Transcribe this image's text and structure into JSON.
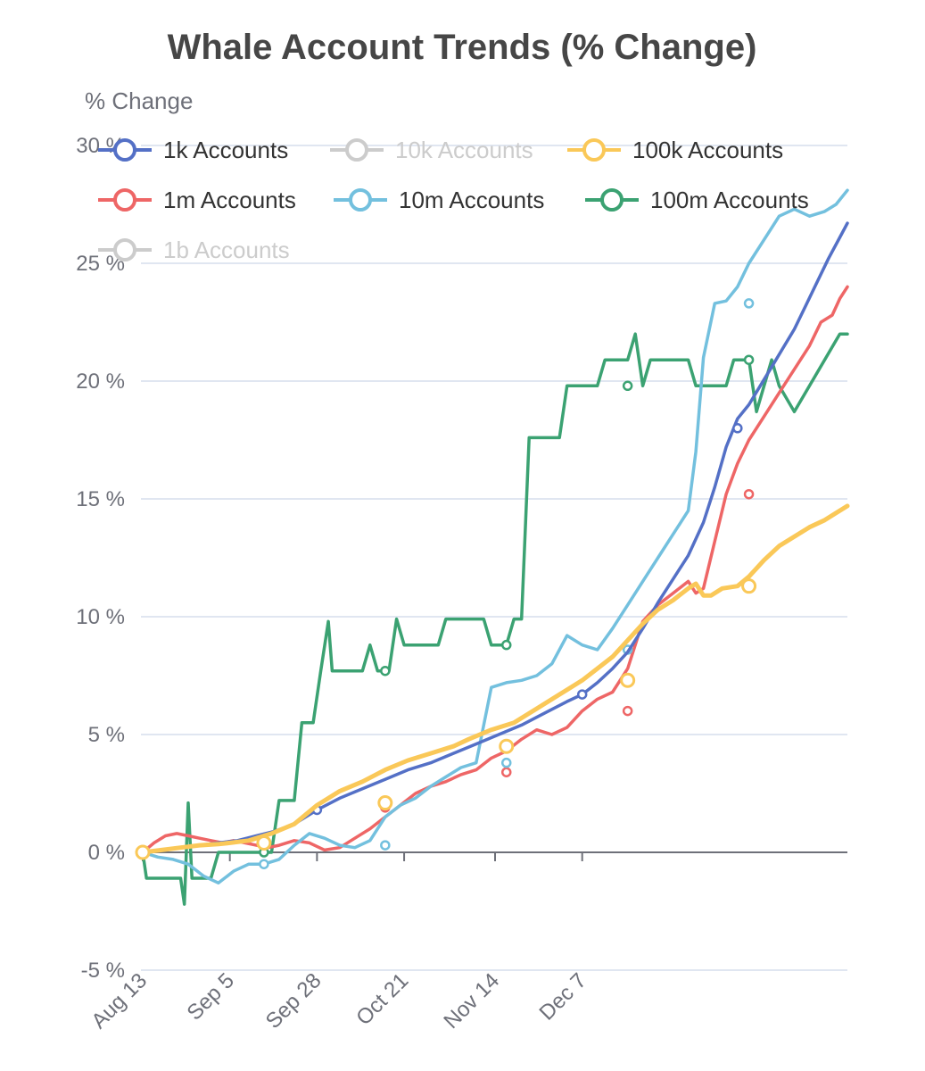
{
  "chart_data": {
    "type": "line",
    "title": "Whale Account Trends (% Change)",
    "ylabel": "% Change",
    "xlabel": "",
    "ylim": [
      -5,
      30
    ],
    "yticks": [
      -5,
      0,
      5,
      10,
      15,
      20,
      25,
      30
    ],
    "ytick_labels": [
      "-5 %",
      "0 %",
      "5 %",
      "10 %",
      "15 %",
      "20 %",
      "25 %",
      "30 %"
    ],
    "x_start": "Aug 13",
    "x_end": "Dec 30",
    "xticks": [
      "Aug 13",
      "Sep 5",
      "Sep 28",
      "Oct 21",
      "Nov 14",
      "Dec 7"
    ],
    "grid": true,
    "legend_position": "top",
    "series": [
      {
        "name": "1k Accounts",
        "color": "#5470c6",
        "visible": true,
        "points": [
          [
            0,
            0
          ],
          [
            5,
            0.1
          ],
          [
            10,
            0.2
          ],
          [
            15,
            0.3
          ],
          [
            20,
            0.4
          ],
          [
            25,
            0.5
          ],
          [
            30,
            0.7
          ],
          [
            35,
            0.9
          ],
          [
            40,
            1.2
          ],
          [
            46,
            1.8
          ],
          [
            52,
            2.3
          ],
          [
            58,
            2.7
          ],
          [
            64,
            3.1
          ],
          [
            70,
            3.5
          ],
          [
            76,
            3.8
          ],
          [
            82,
            4.2
          ],
          [
            88,
            4.6
          ],
          [
            94,
            5.0
          ],
          [
            100,
            5.4
          ],
          [
            106,
            5.9
          ],
          [
            112,
            6.4
          ],
          [
            116,
            6.7
          ],
          [
            120,
            7.2
          ],
          [
            124,
            7.8
          ],
          [
            128,
            8.5
          ],
          [
            132,
            9.5
          ],
          [
            136,
            10.6
          ],
          [
            140,
            11.6
          ],
          [
            144,
            12.6
          ],
          [
            148,
            14.0
          ],
          [
            151,
            15.5
          ],
          [
            154,
            17.2
          ],
          [
            157,
            18.4
          ],
          [
            160,
            19.0
          ],
          [
            163,
            19.8
          ],
          [
            166,
            20.6
          ],
          [
            169,
            21.4
          ],
          [
            172,
            22.2
          ],
          [
            175,
            23.2
          ],
          [
            178,
            24.2
          ],
          [
            181,
            25.2
          ],
          [
            184,
            26.1
          ],
          [
            186,
            26.7
          ]
        ],
        "markers": [
          [
            46,
            1.8
          ],
          [
            116,
            6.7
          ],
          [
            157,
            18.0
          ]
        ]
      },
      {
        "name": "10k Accounts",
        "color": "#91cc75",
        "visible": false,
        "points": [],
        "markers": []
      },
      {
        "name": "100k Accounts",
        "color": "#fac858",
        "visible": true,
        "points": [
          [
            0,
            0
          ],
          [
            5,
            0.1
          ],
          [
            10,
            0.2
          ],
          [
            15,
            0.3
          ],
          [
            20,
            0.35
          ],
          [
            23,
            0.4
          ],
          [
            28,
            0.5
          ],
          [
            34,
            0.8
          ],
          [
            40,
            1.2
          ],
          [
            46,
            2.0
          ],
          [
            52,
            2.6
          ],
          [
            58,
            3.0
          ],
          [
            64,
            3.5
          ],
          [
            70,
            3.9
          ],
          [
            76,
            4.2
          ],
          [
            82,
            4.5
          ],
          [
            86,
            4.8
          ],
          [
            92,
            5.2
          ],
          [
            98,
            5.5
          ],
          [
            104,
            6.1
          ],
          [
            110,
            6.7
          ],
          [
            116,
            7.3
          ],
          [
            120,
            7.8
          ],
          [
            124,
            8.3
          ],
          [
            128,
            9.0
          ],
          [
            132,
            9.7
          ],
          [
            136,
            10.3
          ],
          [
            140,
            10.7
          ],
          [
            144,
            11.2
          ],
          [
            146,
            11.4
          ],
          [
            148,
            10.9
          ],
          [
            150,
            10.9
          ],
          [
            153,
            11.2
          ],
          [
            157,
            11.3
          ],
          [
            160,
            11.7
          ],
          [
            164,
            12.4
          ],
          [
            168,
            13.0
          ],
          [
            172,
            13.4
          ],
          [
            176,
            13.8
          ],
          [
            180,
            14.1
          ],
          [
            183,
            14.4
          ],
          [
            186,
            14.7
          ]
        ],
        "markers": [
          [
            0,
            0
          ],
          [
            32,
            0.4
          ],
          [
            64,
            2.1
          ],
          [
            96,
            4.5
          ],
          [
            128,
            7.3
          ],
          [
            160,
            11.3
          ]
        ]
      },
      {
        "name": "1m Accounts",
        "color": "#ee6666",
        "visible": true,
        "points": [
          [
            0,
            0
          ],
          [
            3,
            0.4
          ],
          [
            6,
            0.7
          ],
          [
            9,
            0.8
          ],
          [
            12,
            0.7
          ],
          [
            15,
            0.6
          ],
          [
            18,
            0.5
          ],
          [
            21,
            0.4
          ],
          [
            24,
            0.5
          ],
          [
            27,
            0.4
          ],
          [
            30,
            0.3
          ],
          [
            33,
            0.2
          ],
          [
            36,
            0.3
          ],
          [
            40,
            0.5
          ],
          [
            44,
            0.4
          ],
          [
            48,
            0.1
          ],
          [
            52,
            0.2
          ],
          [
            56,
            0.6
          ],
          [
            60,
            1.0
          ],
          [
            64,
            1.5
          ],
          [
            68,
            2.0
          ],
          [
            72,
            2.5
          ],
          [
            76,
            2.8
          ],
          [
            80,
            3.0
          ],
          [
            84,
            3.3
          ],
          [
            88,
            3.5
          ],
          [
            92,
            4.0
          ],
          [
            96,
            4.3
          ],
          [
            100,
            4.8
          ],
          [
            104,
            5.2
          ],
          [
            108,
            5.0
          ],
          [
            112,
            5.3
          ],
          [
            116,
            6.0
          ],
          [
            120,
            6.5
          ],
          [
            124,
            6.8
          ],
          [
            128,
            7.8
          ],
          [
            132,
            9.8
          ],
          [
            136,
            10.5
          ],
          [
            140,
            11.0
          ],
          [
            144,
            11.5
          ],
          [
            146,
            11.0
          ],
          [
            148,
            11.2
          ],
          [
            151,
            13.2
          ],
          [
            154,
            15.2
          ],
          [
            157,
            16.5
          ],
          [
            160,
            17.5
          ],
          [
            164,
            18.5
          ],
          [
            168,
            19.5
          ],
          [
            172,
            20.5
          ],
          [
            176,
            21.5
          ],
          [
            179,
            22.5
          ],
          [
            182,
            22.8
          ],
          [
            184,
            23.5
          ],
          [
            186,
            24.0
          ]
        ],
        "markers": [
          [
            32,
            0.4
          ],
          [
            64,
            1.9
          ],
          [
            96,
            3.4
          ],
          [
            128,
            6.0
          ],
          [
            160,
            15.2
          ]
        ]
      },
      {
        "name": "10m Accounts",
        "color": "#73c0de",
        "visible": true,
        "points": [
          [
            0,
            0
          ],
          [
            4,
            -0.2
          ],
          [
            8,
            -0.3
          ],
          [
            12,
            -0.5
          ],
          [
            16,
            -1.0
          ],
          [
            20,
            -1.3
          ],
          [
            24,
            -0.8
          ],
          [
            28,
            -0.5
          ],
          [
            32,
            -0.5
          ],
          [
            36,
            -0.3
          ],
          [
            40,
            0.3
          ],
          [
            44,
            0.8
          ],
          [
            48,
            0.6
          ],
          [
            52,
            0.3
          ],
          [
            56,
            0.2
          ],
          [
            60,
            0.5
          ],
          [
            64,
            1.5
          ],
          [
            68,
            2.0
          ],
          [
            72,
            2.3
          ],
          [
            76,
            2.8
          ],
          [
            80,
            3.2
          ],
          [
            84,
            3.6
          ],
          [
            88,
            3.8
          ],
          [
            92,
            7.0
          ],
          [
            96,
            7.2
          ],
          [
            100,
            7.3
          ],
          [
            104,
            7.5
          ],
          [
            108,
            8.0
          ],
          [
            112,
            9.2
          ],
          [
            116,
            8.8
          ],
          [
            120,
            8.6
          ],
          [
            124,
            9.5
          ],
          [
            128,
            10.5
          ],
          [
            132,
            11.5
          ],
          [
            136,
            12.5
          ],
          [
            140,
            13.5
          ],
          [
            144,
            14.5
          ],
          [
            146,
            17.0
          ],
          [
            148,
            21.0
          ],
          [
            151,
            23.3
          ],
          [
            154,
            23.4
          ],
          [
            157,
            24.0
          ],
          [
            160,
            25.0
          ],
          [
            164,
            26.0
          ],
          [
            168,
            27.0
          ],
          [
            172,
            27.3
          ],
          [
            176,
            27.0
          ],
          [
            180,
            27.2
          ],
          [
            183,
            27.5
          ],
          [
            186,
            28.1
          ]
        ],
        "markers": [
          [
            32,
            -0.5
          ],
          [
            64,
            0.3
          ],
          [
            96,
            3.8
          ],
          [
            128,
            8.6
          ],
          [
            160,
            23.3
          ]
        ]
      },
      {
        "name": "100m Accounts",
        "color": "#3ba272",
        "visible": true,
        "points": [
          [
            0,
            0
          ],
          [
            1,
            -1.1
          ],
          [
            5,
            -1.1
          ],
          [
            10,
            -1.1
          ],
          [
            11,
            -2.2
          ],
          [
            12,
            2.1
          ],
          [
            13,
            -1.1
          ],
          [
            15,
            -1.1
          ],
          [
            18,
            -1.1
          ],
          [
            20,
            0
          ],
          [
            28,
            0
          ],
          [
            32,
            0
          ],
          [
            34,
            0
          ],
          [
            36,
            2.2
          ],
          [
            40,
            2.2
          ],
          [
            42,
            5.5
          ],
          [
            45,
            5.5
          ],
          [
            47,
            7.7
          ],
          [
            49,
            9.8
          ],
          [
            50,
            7.7
          ],
          [
            55,
            7.7
          ],
          [
            58,
            7.7
          ],
          [
            60,
            8.8
          ],
          [
            62,
            7.7
          ],
          [
            65,
            7.7
          ],
          [
            67,
            9.9
          ],
          [
            69,
            8.8
          ],
          [
            73,
            8.8
          ],
          [
            78,
            8.8
          ],
          [
            80,
            9.9
          ],
          [
            85,
            9.9
          ],
          [
            90,
            9.9
          ],
          [
            92,
            8.8
          ],
          [
            96,
            8.8
          ],
          [
            98,
            9.9
          ],
          [
            100,
            9.9
          ],
          [
            102,
            17.6
          ],
          [
            110,
            17.6
          ],
          [
            112,
            19.8
          ],
          [
            120,
            19.8
          ],
          [
            122,
            20.9
          ],
          [
            128,
            20.9
          ],
          [
            130,
            22.0
          ],
          [
            132,
            19.8
          ],
          [
            134,
            20.9
          ],
          [
            140,
            20.9
          ],
          [
            144,
            20.9
          ],
          [
            146,
            19.8
          ],
          [
            150,
            19.8
          ],
          [
            154,
            19.8
          ],
          [
            156,
            20.9
          ],
          [
            160,
            20.9
          ],
          [
            162,
            18.7
          ],
          [
            166,
            20.9
          ],
          [
            168,
            19.8
          ],
          [
            172,
            18.7
          ],
          [
            176,
            19.8
          ],
          [
            180,
            20.9
          ],
          [
            184,
            22.0
          ],
          [
            186,
            22.0
          ]
        ],
        "markers": [
          [
            32,
            0
          ],
          [
            64,
            7.7
          ],
          [
            96,
            8.8
          ],
          [
            128,
            19.8
          ],
          [
            160,
            20.9
          ]
        ]
      },
      {
        "name": "1b Accounts",
        "color": "#fc8452",
        "visible": false,
        "points": [],
        "markers": []
      }
    ]
  }
}
